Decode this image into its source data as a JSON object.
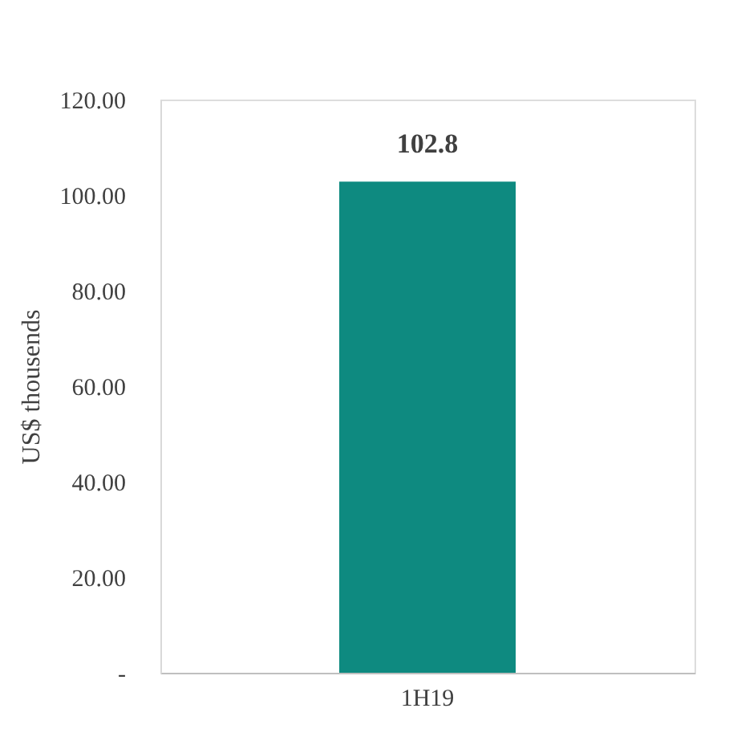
{
  "chart_data": {
    "type": "bar",
    "ylabel": "US$ thousends",
    "categories": [
      "1H19"
    ],
    "series": [
      {
        "color": "#0e8a80",
        "values": [
          102.8
        ]
      }
    ],
    "ylim": [
      0,
      120
    ],
    "yticks": [
      {
        "value": 0,
        "label": "-"
      },
      {
        "value": 20,
        "label": "20.00"
      },
      {
        "value": 40,
        "label": "40.00"
      },
      {
        "value": 60,
        "label": "60.00"
      },
      {
        "value": 80,
        "label": "80.00"
      },
      {
        "value": 100,
        "label": "100.00"
      },
      {
        "value": 120,
        "label": "120.00"
      }
    ],
    "data_labels": true,
    "grid": false
  }
}
